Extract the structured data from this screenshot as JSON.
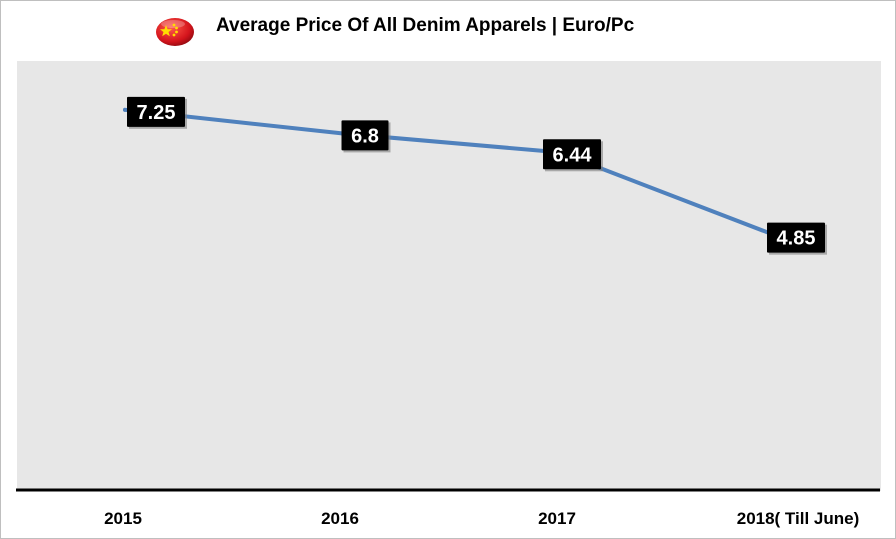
{
  "chart_data": {
    "type": "line",
    "title": "Average Price Of All Denim Apparels | Euro/Pc",
    "categories": [
      "2015",
      "2016",
      "2017",
      "2018( Till June)"
    ],
    "series": [
      {
        "values": [
          7.25,
          6.8,
          6.44,
          4.85
        ]
      }
    ],
    "data_labels": [
      "7.25",
      "6.8",
      "6.44",
      "4.85"
    ],
    "xlabel": "",
    "ylabel": "",
    "ylim": [
      0,
      8.2
    ],
    "grid": false,
    "legend": "none",
    "line_color": "#4f81bd",
    "plot_background": "#e7e7e7",
    "label_background": "#000000",
    "label_text_color": "#ffffff"
  },
  "header": {
    "flag_icon": "china-flag-icon"
  }
}
